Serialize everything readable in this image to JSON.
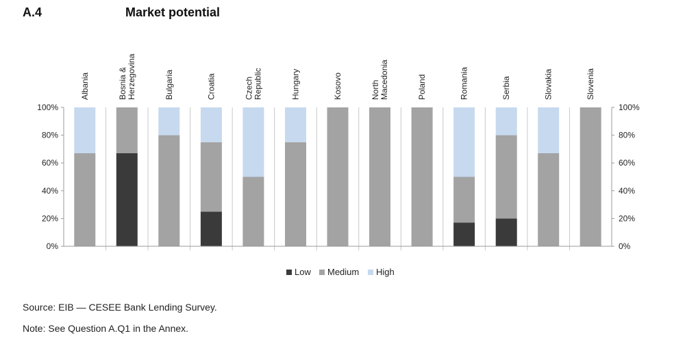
{
  "figure": {
    "number": "A.4",
    "title": "Market potential"
  },
  "notes": {
    "source": "Source: EIB — CESEE Bank Lending Survey.",
    "note": "Note: See Question A.Q1 in the Annex."
  },
  "colors": {
    "low": "#3a3a3a",
    "medium": "#a3a3a3",
    "high": "#c6d9ef",
    "axis": "#9a9a9a"
  },
  "chart_data": {
    "type": "bar",
    "stacked": true,
    "categories": [
      "Albania",
      "Bosnia &\nHerzegovina",
      "Bulgaria",
      "Croatia",
      "Czech\nRepublic",
      "Hungary",
      "Kosovo",
      "North\nMacedonia",
      "Poland",
      "Romania",
      "Serbia",
      "Slovakia",
      "Slovenia"
    ],
    "series": [
      {
        "name": "Low",
        "values": [
          0,
          67,
          0,
          25,
          0,
          0,
          0,
          0,
          0,
          17,
          20,
          0,
          0
        ]
      },
      {
        "name": "Medium",
        "values": [
          67,
          33,
          80,
          50,
          50,
          75,
          100,
          100,
          100,
          33,
          60,
          67,
          100
        ]
      },
      {
        "name": "High",
        "values": [
          33,
          0,
          20,
          25,
          50,
          25,
          0,
          0,
          0,
          50,
          20,
          33,
          0
        ]
      }
    ],
    "ylim": [
      0,
      100
    ],
    "yticks": [
      "0%",
      "20%",
      "40%",
      "60%",
      "80%",
      "100%"
    ],
    "y_right_axis": true,
    "legend_position": "bottom-center",
    "grid": false
  }
}
